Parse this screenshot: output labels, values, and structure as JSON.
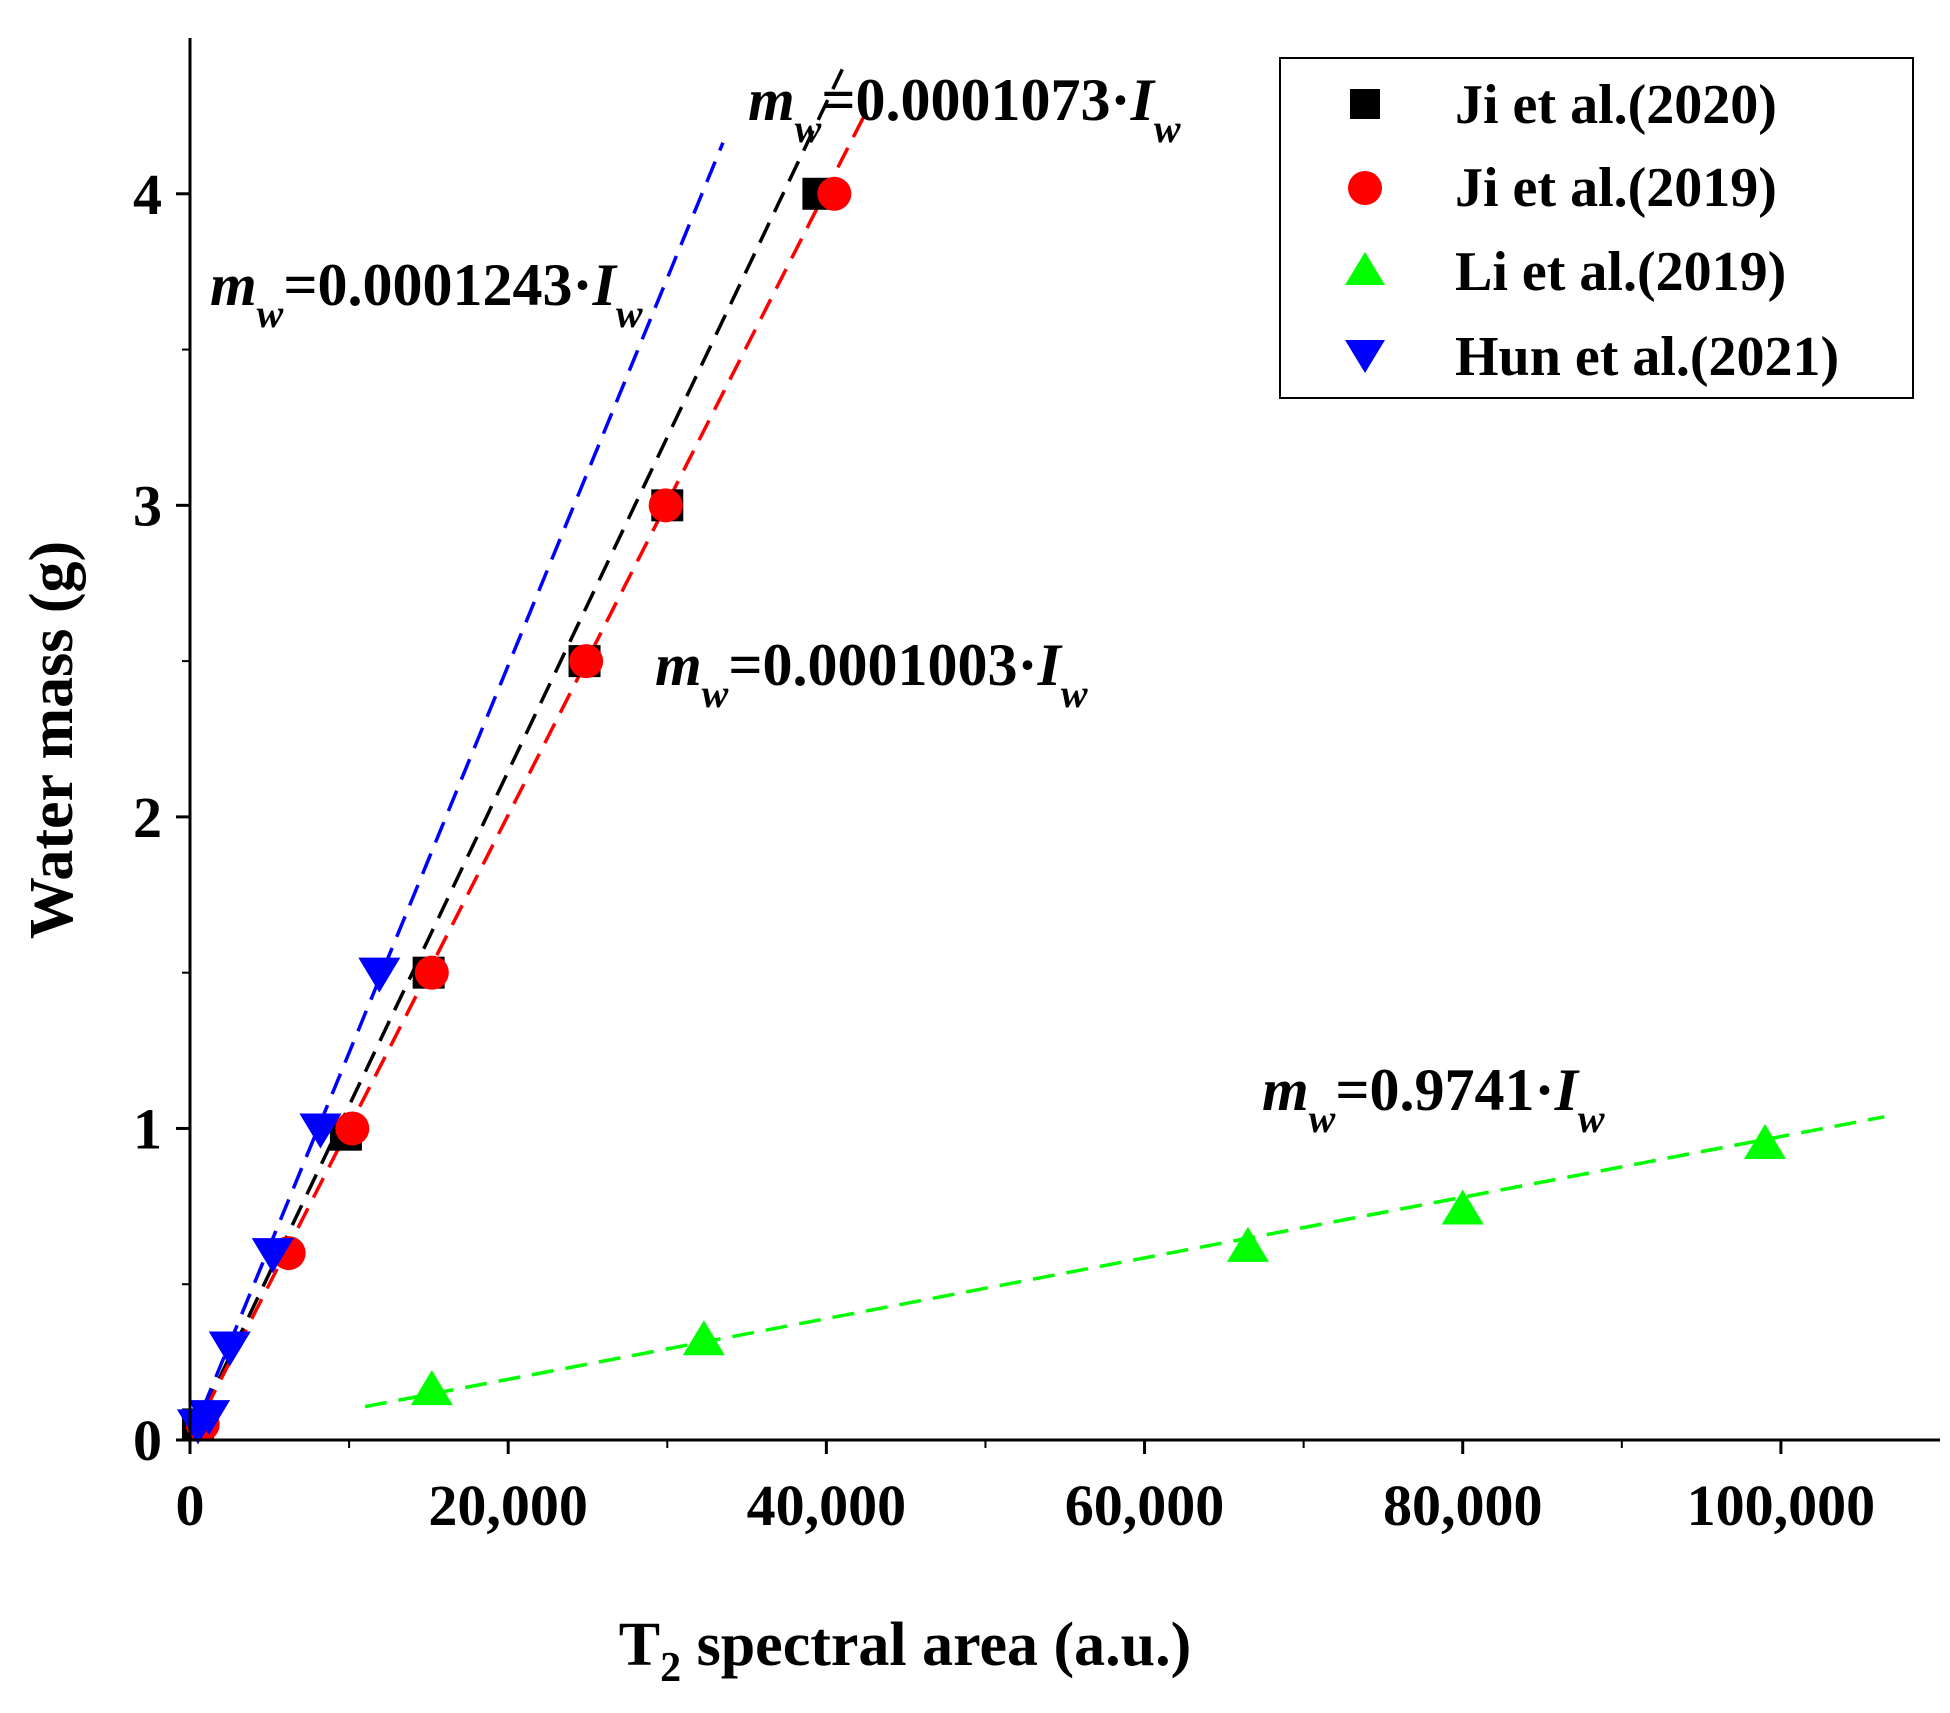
{
  "chart_data": {
    "type": "scatter",
    "title": "",
    "xlabel": {
      "main": "T",
      "sub": "2",
      "rest": " spectral area (a.u.)"
    },
    "ylabel": "Water mass (g)",
    "xlim": [
      0,
      110000
    ],
    "ylim": [
      0,
      4.5
    ],
    "xticks": [
      0,
      20000,
      40000,
      60000,
      80000,
      100000
    ],
    "xtick_labels": [
      "0",
      "20,000",
      "40,000",
      "60,000",
      "80,000",
      "100,000"
    ],
    "yticks": [
      0,
      1,
      2,
      3,
      4
    ],
    "ytick_labels": [
      "0",
      "1",
      "2",
      "3",
      "4"
    ],
    "legend_position": "top-right",
    "series": [
      {
        "name": "Ji et al.(2020)",
        "marker": "square",
        "color": "#000000",
        "fit_slope": 0.0001073,
        "fit_range": [
          0,
          41000
        ],
        "x": [
          500,
          9800,
          15000,
          24800,
          30000,
          39500
        ],
        "y": [
          0.05,
          0.98,
          1.5,
          2.5,
          3.0,
          4.0
        ]
      },
      {
        "name": "Ji et al.(2019)",
        "marker": "circle",
        "color": "#ff0000",
        "fit_slope": 0.0001003,
        "fit_range": [
          0,
          42500
        ],
        "x": [
          800,
          6200,
          10200,
          15200,
          24900,
          29900,
          40500
        ],
        "y": [
          0.05,
          0.6,
          1.0,
          1.5,
          2.5,
          3.0,
          4.0
        ]
      },
      {
        "name": "Li et al.(2019)",
        "marker": "triangle-up",
        "color": "#00ff00",
        "fit_slope": 0.9741,
        "fit_range": [
          11000,
          106500
        ],
        "x": [
          15200,
          32300,
          66500,
          80000,
          99000
        ],
        "y": [
          0.16,
          0.32,
          0.62,
          0.74,
          0.95
        ]
      },
      {
        "name": "Hun et al.(2021)",
        "marker": "triangle-down",
        "color": "#0000ff",
        "fit_slope": 0.0001243,
        "fit_range": [
          0,
          33500
        ],
        "x": [
          500,
          1200,
          2500,
          5200,
          8200,
          11900
        ],
        "y": [
          0.05,
          0.08,
          0.3,
          0.6,
          1.0,
          1.5
        ]
      }
    ],
    "annotations": [
      {
        "name": "eq-ji2020",
        "lhs": "m",
        "lhs_sub": "w",
        "coef": "=0.0001073·",
        "rhs": "I",
        "rhs_sub": "w"
      },
      {
        "name": "eq-hun2021",
        "lhs": "m",
        "lhs_sub": "w",
        "coef": "=0.0001243·",
        "rhs": "I",
        "rhs_sub": "w"
      },
      {
        "name": "eq-ji2019",
        "lhs": "m",
        "lhs_sub": "w",
        "coef": "=0.0001003·",
        "rhs": "I",
        "rhs_sub": "w"
      },
      {
        "name": "eq-li2019",
        "lhs": "m",
        "lhs_sub": "w",
        "coef": "=0.9741·",
        "rhs": "I",
        "rhs_sub": "w"
      }
    ]
  }
}
